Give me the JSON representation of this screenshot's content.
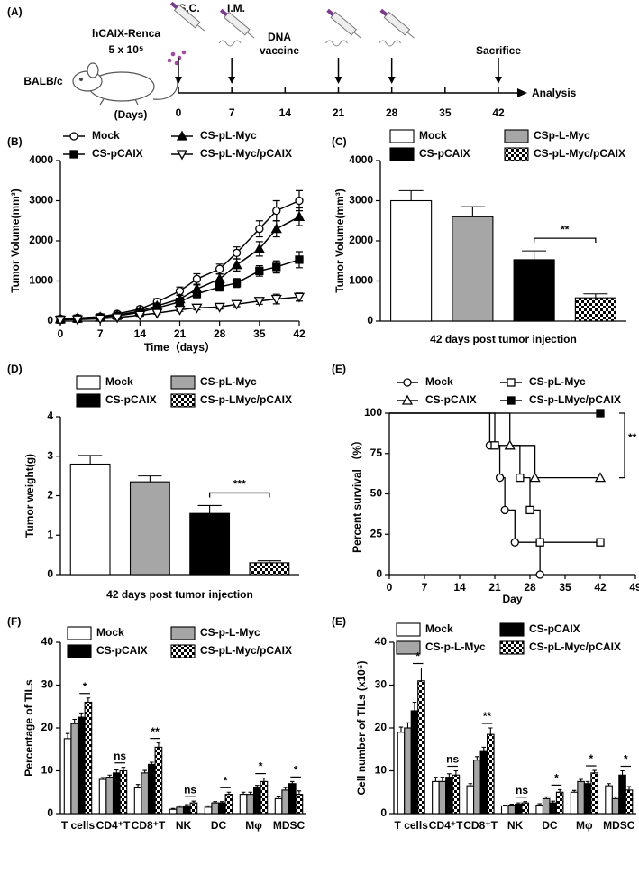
{
  "timeline": {
    "label": "(A)",
    "mouse": "BALB/c",
    "cells": "hCAIX-Renca",
    "dose": "5 x 10⁵",
    "routes": [
      "S.C.",
      "I.M."
    ],
    "vaccine": [
      "DNA",
      "vaccine"
    ],
    "end": "Sacrifice",
    "axis_label": "(Days)",
    "days": [
      0,
      7,
      14,
      21,
      28,
      35,
      42
    ],
    "outcome": "Analysis"
  },
  "chart_data": [
    {
      "label": "(B)",
      "type": "line",
      "xlabel": "Time（days）",
      "ylabel": "Tumor Volume(mm³)",
      "legend_flow": "row",
      "x": [
        0,
        3,
        7,
        10,
        14,
        17,
        21,
        24,
        28,
        31,
        35,
        38,
        42
      ],
      "xlim": [
        0,
        42
      ],
      "xticks": [
        0,
        7,
        14,
        21,
        28,
        35,
        42
      ],
      "ylim": [
        0,
        4000
      ],
      "yticks": [
        0,
        1000,
        2000,
        3000,
        4000
      ],
      "series": [
        {
          "name": "Mock",
          "marker": "circle-open",
          "color": "#000000",
          "values": [
            60,
            80,
            110,
            180,
            300,
            480,
            750,
            1050,
            1300,
            1700,
            2300,
            2750,
            3000
          ],
          "errors": [
            20,
            20,
            30,
            40,
            60,
            80,
            100,
            130,
            120,
            150,
            200,
            250,
            250
          ]
        },
        {
          "name": "CS-pL-Myc",
          "marker": "triangle-filled",
          "color": "#000000",
          "values": [
            50,
            70,
            100,
            150,
            250,
            380,
            550,
            800,
            1050,
            1400,
            1800,
            2300,
            2600
          ],
          "errors": [
            20,
            20,
            30,
            40,
            50,
            70,
            90,
            100,
            120,
            150,
            180,
            200,
            220
          ]
        },
        {
          "name": "CS-pCAIX",
          "marker": "square-filled",
          "color": "#000000",
          "values": [
            40,
            60,
            90,
            130,
            220,
            330,
            480,
            680,
            850,
            950,
            1250,
            1350,
            1530
          ],
          "errors": [
            15,
            20,
            25,
            30,
            40,
            60,
            80,
            100,
            100,
            110,
            130,
            150,
            200
          ]
        },
        {
          "name": "CS-pL-Myc/pCAIX",
          "marker": "triangle-down-open",
          "color": "#000000",
          "values": [
            30,
            40,
            60,
            90,
            150,
            200,
            280,
            330,
            350,
            420,
            500,
            550,
            600
          ],
          "errors": [
            10,
            10,
            15,
            20,
            30,
            30,
            40,
            50,
            50,
            60,
            80,
            120,
            100
          ]
        }
      ]
    },
    {
      "label": "(C)",
      "type": "bar",
      "xlabel": "42 days post tumor injection",
      "ylabel": "Tumor Volume(mm³)",
      "legend_flow": "row",
      "annotation": "**",
      "categories": [
        null
      ],
      "ylim": [
        0,
        4000
      ],
      "yticks": [
        0,
        1000,
        2000,
        3000,
        4000
      ],
      "series": [
        {
          "name": "Mock",
          "color": "#ffffff",
          "values": [
            3000
          ],
          "errors": [
            250
          ]
        },
        {
          "name": "CSp-L-Myc",
          "color": "#a6a6a6",
          "values": [
            2600
          ],
          "errors": [
            250
          ]
        },
        {
          "name": "CS-pCAIX",
          "color": "#000000",
          "values": [
            1530
          ],
          "errors": [
            220
          ]
        },
        {
          "name": "CS-pL-Myc/pCAIX",
          "color": "#000000",
          "pattern": "checker",
          "values": [
            580
          ],
          "errors": [
            100
          ]
        }
      ]
    },
    {
      "label": "(D)",
      "type": "bar",
      "xlabel": "42 days post tumor injection",
      "ylabel": "Tumor weight(g)",
      "legend_flow": "row",
      "annotation": "***",
      "categories": [
        null
      ],
      "ylim": [
        0,
        4
      ],
      "yticks": [
        0,
        1,
        2,
        3,
        4
      ],
      "series": [
        {
          "name": "Mock",
          "color": "#ffffff",
          "values": [
            2.8
          ],
          "errors": [
            0.22
          ]
        },
        {
          "name": "CS-pL-Myc",
          "color": "#a6a6a6",
          "values": [
            2.35
          ],
          "errors": [
            0.15
          ]
        },
        {
          "name": "CS-pCAIX",
          "color": "#000000",
          "values": [
            1.55
          ],
          "errors": [
            0.2
          ]
        },
        {
          "name": "CS-p-LMyc/pCAIX",
          "color": "#000000",
          "pattern": "checker",
          "values": [
            0.3
          ],
          "errors": [
            0.05
          ]
        }
      ]
    },
    {
      "label": "(E)",
      "type": "step",
      "xlabel": "Day",
      "ylabel": "Percent survival （%）",
      "legend_flow": "row",
      "annotation": "**",
      "xlim": [
        0,
        49
      ],
      "xticks": [
        0,
        7,
        14,
        21,
        28,
        35,
        42,
        49
      ],
      "ylim": [
        0,
        100
      ],
      "yticks": [
        0,
        25,
        50,
        75,
        100
      ],
      "series": [
        {
          "name": "Mock",
          "marker": "circle-open",
          "color": "#000000",
          "x": [
            0,
            20,
            22,
            23,
            25,
            30
          ],
          "values": [
            100,
            80,
            60,
            40,
            20,
            0
          ]
        },
        {
          "name": "CS-pL-Myc",
          "marker": "square-open",
          "color": "#000000",
          "x": [
            0,
            21,
            26,
            28,
            30,
            42
          ],
          "values": [
            100,
            80,
            60,
            40,
            20,
            20
          ]
        },
        {
          "name": "CS-pCAIX",
          "marker": "triangle-open",
          "color": "#000000",
          "x": [
            0,
            24,
            29,
            42
          ],
          "values": [
            100,
            80,
            60,
            60
          ]
        },
        {
          "name": "CS-p-LMyc/pCAIX",
          "marker": "square-filled",
          "color": "#000000",
          "x": [
            0,
            42
          ],
          "values": [
            100,
            100
          ]
        }
      ]
    },
    {
      "label": "(F)",
      "type": "bar",
      "ylabel": "Percentage of TILs",
      "legend_flow": "row",
      "categories": [
        "T cells",
        "CD4⁺T",
        "CD8⁺T",
        "NK",
        "DC",
        "Mφ",
        "MDSC"
      ],
      "significance": [
        "*",
        "ns",
        "**",
        "ns",
        "*",
        "*",
        "*"
      ],
      "ylim": [
        0,
        40
      ],
      "yticks": [
        0,
        10,
        20,
        30,
        40
      ],
      "series": [
        {
          "name": "Mock",
          "color": "#ffffff",
          "values": [
            17.5,
            8,
            6,
            1,
            1.5,
            4.5,
            3.5
          ],
          "errors": [
            1.2,
            0.4,
            0.8,
            0.2,
            0.3,
            0.5,
            0.6
          ]
        },
        {
          "name": "CS-p-L-Myc",
          "color": "#a6a6a6",
          "values": [
            21,
            8.5,
            9.5,
            1.5,
            2.5,
            4.5,
            5.5
          ],
          "errors": [
            1,
            0.5,
            0.6,
            0.3,
            0.3,
            0.5,
            0.6
          ]
        },
        {
          "name": "CS-pCAIX",
          "color": "#000000",
          "values": [
            22.5,
            9.5,
            11.5,
            1.8,
            2.5,
            6,
            7
          ],
          "errors": [
            1,
            0.7,
            0.5,
            0.3,
            0.3,
            0.6,
            0.5
          ]
        },
        {
          "name": "CS-pL-Myc/pCAIX",
          "color": "#000000",
          "pattern": "checker",
          "values": [
            26,
            10,
            15.5,
            2.5,
            4.5,
            7.5,
            4.5
          ],
          "errors": [
            1,
            0.8,
            1,
            0.4,
            0.5,
            0.8,
            0.8
          ]
        }
      ]
    },
    {
      "label": "(E)",
      "type": "bar",
      "ylabel": "Cell number of TILs (x10⁵)",
      "legend_flow": "column",
      "categories": [
        "T cells",
        "CD4⁺T",
        "CD8⁺T",
        "NK",
        "DC",
        "Mφ",
        "MDSC"
      ],
      "significance": [
        "*",
        "ns",
        "**",
        "ns",
        "*",
        "*",
        "*"
      ],
      "ylim": [
        0,
        40
      ],
      "yticks": [
        0,
        10,
        20,
        30,
        40
      ],
      "series": [
        {
          "name": "Mock",
          "color": "#ffffff",
          "values": [
            19,
            7.5,
            6.5,
            1.8,
            2,
            5,
            6.5
          ],
          "errors": [
            1.2,
            1,
            0.5,
            0.2,
            0.3,
            0.4,
            0.5
          ]
        },
        {
          "name": "CS-p-L-Myc",
          "color": "#a6a6a6",
          "values": [
            20,
            7.5,
            12.5,
            2,
            3.5,
            7.5,
            3.5
          ],
          "errors": [
            1.2,
            1,
            0.8,
            0.2,
            0.4,
            0.5,
            0.4
          ]
        },
        {
          "name": "CS-pCAIX",
          "color": "#000000",
          "values": [
            24,
            8.5,
            14.5,
            2.2,
            2.5,
            7,
            9
          ],
          "errors": [
            2,
            0.8,
            1,
            0.3,
            0.4,
            0.5,
            1
          ]
        },
        {
          "name": "CS-pL-Myc/pCAIX",
          "color": "#000000",
          "pattern": "checker",
          "values": [
            31,
            9,
            18.5,
            2.5,
            5,
            9.5,
            5.5
          ],
          "errors": [
            3,
            1,
            1.5,
            0.3,
            0.6,
            0.6,
            0.8
          ]
        }
      ]
    }
  ]
}
